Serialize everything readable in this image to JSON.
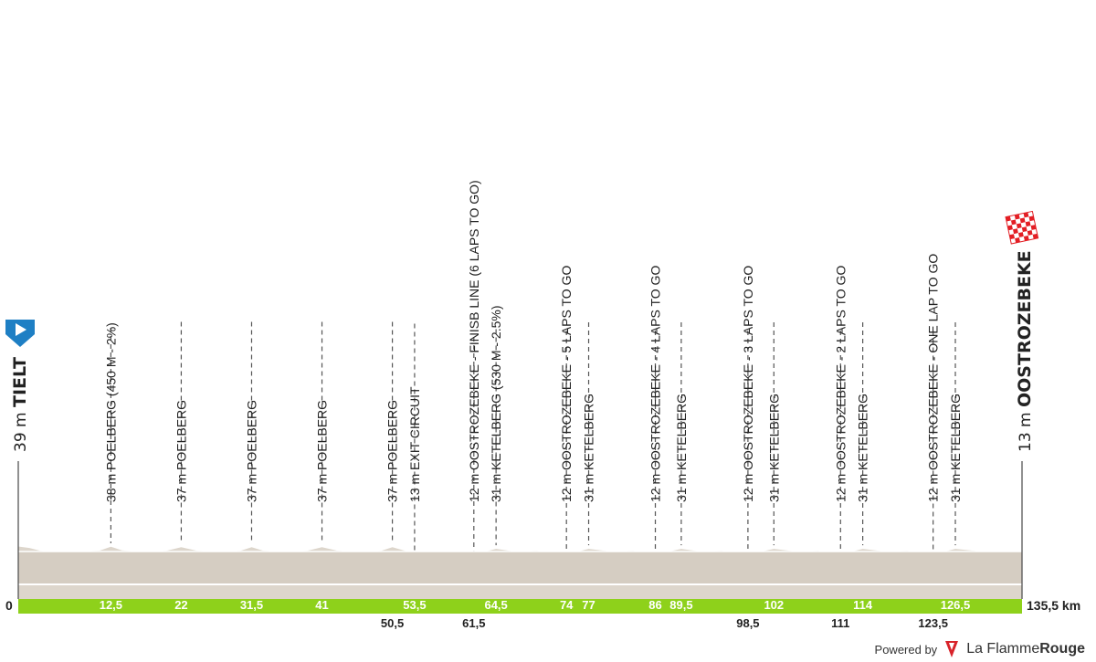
{
  "chart_data": {
    "type": "area",
    "title": "",
    "xlabel": "",
    "ylabel": "",
    "x_unit": "km",
    "xlim": [
      0,
      135.5
    ],
    "start": {
      "km": 0,
      "name": "TIELT",
      "elevation": "39 m",
      "icon": "start-flag-icon"
    },
    "finish": {
      "km": 135.5,
      "name": "OOSTROZEBEKE",
      "elevation": "13 m",
      "icon": "checkered-flag-icon"
    },
    "start_km_label": "0",
    "end_km_label": "135,5 km",
    "elevation_m": [
      [
        0,
        39
      ],
      [
        1.5,
        34
      ],
      [
        3,
        24
      ],
      [
        5,
        20
      ],
      [
        8,
        21
      ],
      [
        11,
        25
      ],
      [
        12.5,
        38
      ],
      [
        14,
        26
      ],
      [
        17,
        20
      ],
      [
        20,
        24
      ],
      [
        22,
        37
      ],
      [
        24,
        25
      ],
      [
        27,
        20
      ],
      [
        30,
        24
      ],
      [
        31.5,
        37
      ],
      [
        33,
        25
      ],
      [
        36,
        20
      ],
      [
        39,
        24
      ],
      [
        41,
        37
      ],
      [
        43,
        25
      ],
      [
        46,
        19
      ],
      [
        49,
        24
      ],
      [
        50.5,
        37
      ],
      [
        52,
        26
      ],
      [
        53.5,
        13
      ],
      [
        56,
        20
      ],
      [
        59,
        22
      ],
      [
        61.5,
        12
      ],
      [
        64.5,
        31
      ],
      [
        67,
        22
      ],
      [
        70,
        24
      ],
      [
        74,
        12
      ],
      [
        77,
        31
      ],
      [
        80,
        22
      ],
      [
        83,
        24
      ],
      [
        86,
        12
      ],
      [
        89.5,
        31
      ],
      [
        92,
        22
      ],
      [
        95,
        24
      ],
      [
        98.5,
        12
      ],
      [
        102,
        31
      ],
      [
        105,
        22
      ],
      [
        108,
        24
      ],
      [
        111,
        12
      ],
      [
        114,
        31
      ],
      [
        117,
        22
      ],
      [
        120,
        24
      ],
      [
        123.5,
        12
      ],
      [
        126.5,
        31
      ],
      [
        130,
        22
      ],
      [
        133,
        20
      ],
      [
        135.5,
        13
      ]
    ],
    "waypoints": [
      {
        "km": 12.5,
        "km_label": "12,5",
        "label_row": "top",
        "text": "38 m POELBERG (450 M - 2%)"
      },
      {
        "km": 22,
        "km_label": "22",
        "label_row": "top",
        "text": "37 m POELBERG"
      },
      {
        "km": 31.5,
        "km_label": "31,5",
        "label_row": "top",
        "text": "37 m POELBERG"
      },
      {
        "km": 41,
        "km_label": "41",
        "label_row": "top",
        "text": "37 m POELBERG"
      },
      {
        "km": 50.5,
        "km_label": "50,5",
        "label_row": "bottom",
        "text": "37 m POELBERG"
      },
      {
        "km": 53.5,
        "km_label": "53,5",
        "label_row": "top",
        "text": "13 m EXIT CIRCUIT"
      },
      {
        "km": 61.5,
        "km_label": "61,5",
        "label_row": "bottom",
        "text": "12 m OOSTROZEBEKE - FINISB LINE (6 LAPS TO GO)"
      },
      {
        "km": 64.5,
        "km_label": "64,5",
        "label_row": "top",
        "text": "31 m KETELBERG (530 M - 2.5%)"
      },
      {
        "km": 74,
        "km_label": "74",
        "label_row": "top",
        "text": "12 m OOSTROZEBEKE - 5 LAPS TO GO"
      },
      {
        "km": 77,
        "km_label": "77",
        "label_row": "top",
        "text": "31 m KETELBERG"
      },
      {
        "km": 86,
        "km_label": "86",
        "label_row": "top",
        "text": "12 m OOSTROZEBEKE - 4 LAPS TO GO"
      },
      {
        "km": 89.5,
        "km_label": "89,5",
        "label_row": "top",
        "text": "31 m KETELBERG"
      },
      {
        "km": 98.5,
        "km_label": "98,5",
        "label_row": "bottom",
        "text": "12 m OOSTROZEBEKE - 3 LAPS TO GO"
      },
      {
        "km": 102,
        "km_label": "102",
        "label_row": "top",
        "text": "31 m KETELBERG"
      },
      {
        "km": 111,
        "km_label": "111",
        "label_row": "bottom",
        "text": "12 m OOSTROZEBEKE - 2 LAPS TO GO"
      },
      {
        "km": 114,
        "km_label": "114",
        "label_row": "top",
        "text": "31 m KETELBERG"
      },
      {
        "km": 123.5,
        "km_label": "123,5",
        "label_row": "bottom",
        "text": "12 m OOSTROZEBEKE - ONE LAP TO GO"
      },
      {
        "km": 126.5,
        "km_label": "126,5",
        "label_row": "top",
        "text": "31 m KETELBERG"
      }
    ],
    "colors": {
      "profile_fill": "#ddd6cc",
      "profile_band": "#d5cdc2",
      "km_bar": "#8ed11b",
      "start_flag": "#1e7fc4",
      "finish_flag": "#e31e24",
      "guide_line": "#555555"
    },
    "grid": false,
    "legend": "none"
  },
  "branding": {
    "powered_by": "Powered by",
    "name_regular": "La Flamme",
    "name_bold": "Rouge",
    "logo_icon": "flame-logo-icon"
  }
}
